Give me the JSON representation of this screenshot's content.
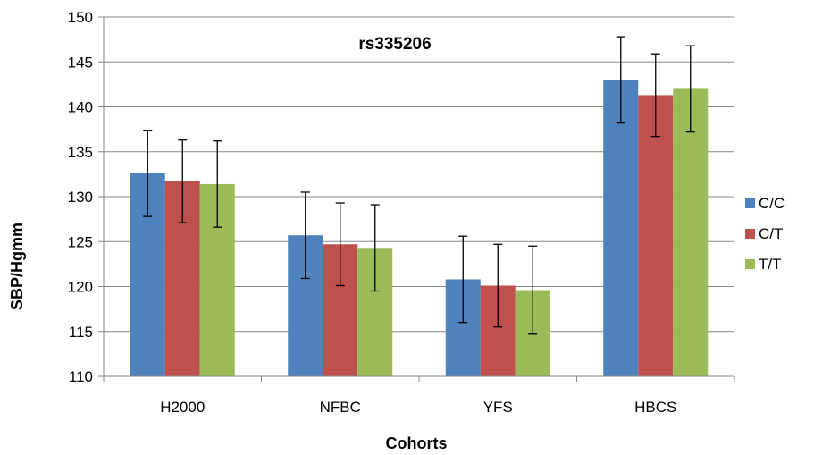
{
  "chart_data": {
    "type": "bar",
    "title": "rs335206",
    "xlabel": "Cohorts",
    "ylabel": "SBP/Hgmm",
    "ylim": [
      110,
      150
    ],
    "yticks": [
      110,
      115,
      120,
      125,
      130,
      135,
      140,
      145,
      150
    ],
    "grid": true,
    "legend_position": "right",
    "categories": [
      "H2000",
      "NFBC",
      "YFS",
      "HBCS"
    ],
    "series": [
      {
        "name": "C/C",
        "color": "#4f81bd",
        "values": [
          132.6,
          125.7,
          120.8,
          143.0
        ],
        "error": [
          4.8,
          4.8,
          4.8,
          4.8
        ]
      },
      {
        "name": "C/T",
        "color": "#c0504d",
        "values": [
          131.7,
          124.7,
          120.1,
          141.3
        ],
        "error": [
          4.6,
          4.6,
          4.6,
          4.6
        ]
      },
      {
        "name": "T/T",
        "color": "#9bbb59",
        "values": [
          131.4,
          124.3,
          119.6,
          142.0
        ],
        "error": [
          4.8,
          4.8,
          4.9,
          4.8
        ]
      }
    ]
  }
}
